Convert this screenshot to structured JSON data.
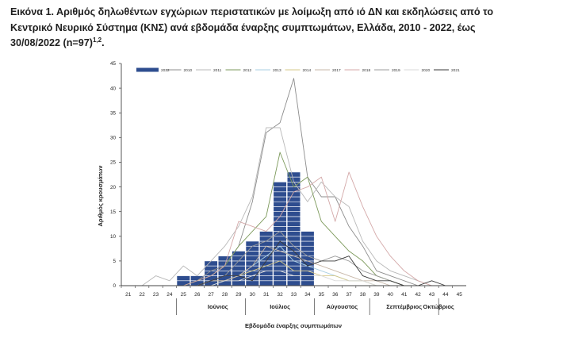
{
  "title": {
    "line1": "Εικόνα 1. Αριθμός δηλωθέντων εγχώριων περιστατικών με λοίμωξη από ιό ΔΝ και εκδηλώσεις από το",
    "line2": "Κεντρικό Νευρικό Σύστημα (ΚΝΣ) ανά εβδομάδα έναρξης συμπτωμάτων, Ελλάδα, 2010 - 2022, έως",
    "line3": "30/08/2022 (n=97)",
    "line3_sup": "1,2",
    "line3_end": "."
  },
  "chart_data": {
    "type": "bar",
    "title": "Αριθμός δηλωθέντων εγχώριων περιστατικών με λοίμωξη από ιό ΔΝ και εκδηλώσεις από το Κεντρικό Νευρικό Σύστημα (ΚΝΣ) ανά εβδομάδα έναρξης συμπτωμάτων, Ελλάδα, 2010 - 2022, έως 30/08/2022 (n=97)",
    "xlabel": "Εβδομάδα έναρξης συμπτωμάτων",
    "ylabel": "Αριθμός κρουσμάτων",
    "ylim": [
      0,
      45
    ],
    "yticks": [
      0,
      5,
      10,
      15,
      20,
      25,
      30,
      35,
      40,
      45
    ],
    "categories": [
      "21",
      "22",
      "23",
      "24",
      "25",
      "26",
      "27",
      "28",
      "29",
      "30",
      "31",
      "32",
      "33",
      "34",
      "35",
      "36",
      "37",
      "38",
      "39",
      "40",
      "41",
      "42",
      "43",
      "44",
      "45"
    ],
    "bar_series": {
      "name": "2022",
      "color": "#2e4d8f",
      "values": [
        0,
        0,
        0,
        0,
        2,
        2,
        5,
        6,
        7,
        9,
        11,
        21,
        23,
        11,
        0,
        0,
        0,
        0,
        0,
        0,
        0,
        0,
        0,
        0,
        0
      ]
    },
    "line_series": [
      {
        "name": "2010",
        "color": "#8c8c8c",
        "values": [
          null,
          null,
          null,
          null,
          0,
          1,
          3,
          4,
          8,
          17,
          31,
          33,
          42,
          22,
          18,
          18,
          12,
          8,
          3,
          2,
          1,
          0,
          0,
          0,
          0
        ]
      },
      {
        "name": "2011",
        "color": "#b8b8b8",
        "values": [
          null,
          0,
          2,
          1,
          4,
          2,
          5,
          8,
          12,
          18,
          32,
          32,
          21,
          17,
          21,
          18,
          16,
          9,
          5,
          3,
          2,
          1,
          0,
          0,
          0
        ]
      },
      {
        "name": "2012",
        "color": "#7d9a5c",
        "values": [
          null,
          null,
          null,
          null,
          0,
          1,
          2,
          4,
          8,
          11,
          14,
          27,
          20,
          22,
          13,
          10,
          7,
          5,
          2,
          1,
          0,
          0,
          0,
          0,
          0
        ]
      },
      {
        "name": "2013",
        "color": "#a9cfe3",
        "values": [
          null,
          null,
          null,
          null,
          null,
          0,
          0,
          1,
          2,
          4,
          6,
          8,
          5,
          4,
          3,
          2,
          1,
          1,
          0,
          0,
          0,
          0,
          0,
          0,
          null
        ]
      },
      {
        "name": "2014",
        "color": "#d6c98a",
        "values": [
          null,
          null,
          null,
          null,
          null,
          0,
          1,
          1,
          2,
          3,
          4,
          5,
          3,
          3,
          2,
          2,
          1,
          1,
          0,
          0,
          0,
          0,
          0,
          null,
          null
        ]
      },
      {
        "name": "2017",
        "color": "#c7b7a8",
        "values": [
          null,
          null,
          null,
          null,
          0,
          0,
          1,
          1,
          2,
          4,
          8,
          7,
          6,
          5,
          4,
          3,
          2,
          1,
          1,
          0,
          0,
          0,
          null,
          null,
          null
        ]
      },
      {
        "name": "2018",
        "color": "#d4a9a9",
        "values": [
          null,
          null,
          null,
          null,
          0,
          1,
          2,
          4,
          13,
          12,
          11,
          14,
          19,
          20,
          22,
          13,
          23,
          16,
          10,
          6,
          3,
          1,
          0,
          0,
          0
        ]
      },
      {
        "name": "2019",
        "color": "#9c9c9c",
        "values": [
          null,
          null,
          null,
          null,
          0,
          0,
          1,
          2,
          5,
          8,
          9,
          11,
          8,
          6,
          5,
          6,
          5,
          3,
          2,
          1,
          0,
          0,
          0,
          0,
          null
        ]
      },
      {
        "name": "2020",
        "color": "#d9d9d9",
        "values": [
          null,
          null,
          null,
          null,
          null,
          0,
          0,
          1,
          1,
          2,
          3,
          3,
          2,
          2,
          2,
          1,
          1,
          1,
          0,
          0,
          0,
          null,
          null,
          null,
          null
        ]
      },
      {
        "name": "2021",
        "color": "#3a3a3a",
        "values": [
          null,
          null,
          null,
          null,
          0,
          0,
          1,
          2,
          2,
          1,
          5,
          9,
          7,
          4,
          5,
          5,
          6,
          2,
          1,
          1,
          0,
          0,
          1,
          0,
          null
        ]
      }
    ],
    "months": [
      "Ιούνιος",
      "Ιούλιος",
      "Αύγουστος",
      "Σεπτέμβριος",
      "Οκτώβριος"
    ],
    "legend_position": "top"
  }
}
